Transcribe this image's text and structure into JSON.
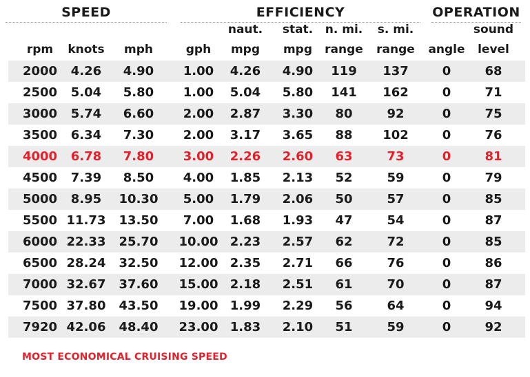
{
  "groups": {
    "speed": "SPEED",
    "efficiency": "EFFICIENCY",
    "operation": "OPERATION"
  },
  "columns": [
    {
      "key": "rpm",
      "line1": "",
      "line2": "rpm"
    },
    {
      "key": "knots",
      "line1": "",
      "line2": "knots"
    },
    {
      "key": "mph",
      "line1": "",
      "line2": "mph"
    },
    {
      "key": "gph",
      "line1": "",
      "line2": "gph"
    },
    {
      "key": "naut_mpg",
      "line1": "naut.",
      "line2": "mpg"
    },
    {
      "key": "stat_mpg",
      "line1": "stat.",
      "line2": "mpg"
    },
    {
      "key": "nmi_range",
      "line1": "n. mi.",
      "line2": "range"
    },
    {
      "key": "smi_range",
      "line1": "s. mi.",
      "line2": "range"
    },
    {
      "key": "angle",
      "line1": "",
      "line2": "angle"
    },
    {
      "key": "sound",
      "line1": "sound",
      "line2": "level"
    }
  ],
  "rows": [
    [
      "2000",
      "4.26",
      "4.90",
      "1.00",
      "4.26",
      "4.90",
      "119",
      "137",
      "0",
      "68"
    ],
    [
      "2500",
      "5.04",
      "5.80",
      "1.00",
      "5.04",
      "5.80",
      "141",
      "162",
      "0",
      "71"
    ],
    [
      "3000",
      "5.74",
      "6.60",
      "2.00",
      "2.87",
      "3.30",
      "80",
      "92",
      "0",
      "75"
    ],
    [
      "3500",
      "6.34",
      "7.30",
      "2.00",
      "3.17",
      "3.65",
      "88",
      "102",
      "0",
      "76"
    ],
    [
      "4000",
      "6.78",
      "7.80",
      "3.00",
      "2.26",
      "2.60",
      "63",
      "73",
      "0",
      "81"
    ],
    [
      "4500",
      "7.39",
      "8.50",
      "4.00",
      "1.85",
      "2.13",
      "52",
      "59",
      "0",
      "79"
    ],
    [
      "5000",
      "8.95",
      "10.30",
      "5.00",
      "1.79",
      "2.06",
      "50",
      "57",
      "0",
      "85"
    ],
    [
      "5500",
      "11.73",
      "13.50",
      "7.00",
      "1.68",
      "1.93",
      "47",
      "54",
      "0",
      "87"
    ],
    [
      "6000",
      "22.33",
      "25.70",
      "10.00",
      "2.23",
      "2.57",
      "62",
      "72",
      "0",
      "85"
    ],
    [
      "6500",
      "28.24",
      "32.50",
      "12.00",
      "2.35",
      "2.71",
      "66",
      "76",
      "0",
      "86"
    ],
    [
      "7000",
      "32.67",
      "37.60",
      "15.00",
      "2.18",
      "2.51",
      "61",
      "70",
      "0",
      "87"
    ],
    [
      "7500",
      "37.80",
      "43.50",
      "19.00",
      "1.99",
      "2.29",
      "56",
      "64",
      "0",
      "94"
    ],
    [
      "7920",
      "42.06",
      "48.40",
      "23.00",
      "1.83",
      "2.10",
      "51",
      "59",
      "0",
      "92"
    ]
  ],
  "highlight_row": 4,
  "highlight_color": "#e3212b",
  "footnote": "MOST ECONOMICAL CRUISING SPEED"
}
